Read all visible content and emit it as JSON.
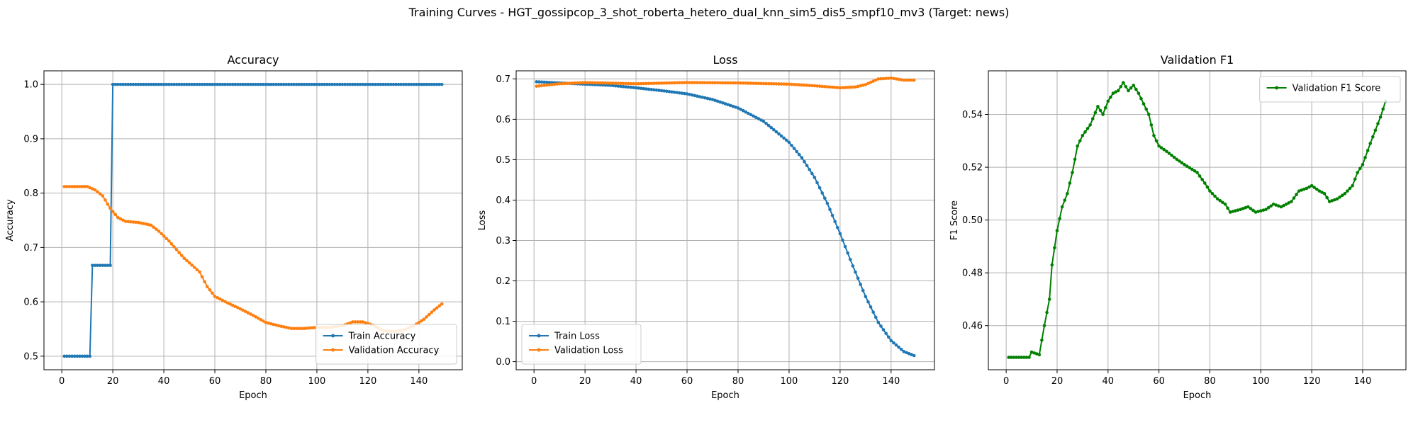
{
  "figure": {
    "suptitle": "Training Curves - HGT_gossipcop_3_shot_roberta_hetero_dual_knn_sim5_dis5_smpf10_mv3 (Target: news)"
  },
  "colors": {
    "train": "#1f77b4",
    "validation": "#ff7f0e",
    "f1": "#008000",
    "grid": "#b0b0b0"
  },
  "chart_data": [
    {
      "type": "line",
      "title": "Accuracy",
      "xlabel": "Epoch",
      "ylabel": "Accuracy",
      "xlim": [
        -7,
        157
      ],
      "ylim": [
        0.475,
        1.025
      ],
      "xticks": [
        0,
        20,
        40,
        60,
        80,
        100,
        120,
        140
      ],
      "yticks": [
        0.5,
        0.6,
        0.7,
        0.8,
        0.9,
        1.0
      ],
      "ytick_decimals": 1,
      "grid": true,
      "legend": "lower-right",
      "series": [
        {
          "name": "Train Accuracy",
          "color_key": "train",
          "x_start": 1,
          "keypoints": [
            [
              1,
              0.5
            ],
            [
              11,
              0.5
            ],
            [
              12,
              0.667
            ],
            [
              19,
              0.667
            ],
            [
              20,
              1.0
            ],
            [
              149,
              1.0
            ]
          ],
          "interp": "step"
        },
        {
          "name": "Validation Accuracy",
          "color_key": "validation",
          "x_start": 1,
          "keypoints": [
            [
              1,
              0.812
            ],
            [
              10,
              0.812
            ],
            [
              13,
              0.806
            ],
            [
              16,
              0.795
            ],
            [
              19,
              0.772
            ],
            [
              22,
              0.755
            ],
            [
              25,
              0.748
            ],
            [
              30,
              0.746
            ],
            [
              35,
              0.741
            ],
            [
              38,
              0.73
            ],
            [
              42,
              0.712
            ],
            [
              48,
              0.68
            ],
            [
              54,
              0.655
            ],
            [
              57,
              0.628
            ],
            [
              60,
              0.61
            ],
            [
              65,
              0.598
            ],
            [
              70,
              0.587
            ],
            [
              75,
              0.575
            ],
            [
              80,
              0.562
            ],
            [
              85,
              0.556
            ],
            [
              90,
              0.551
            ],
            [
              95,
              0.551
            ],
            [
              100,
              0.553
            ],
            [
              105,
              0.553
            ],
            [
              110,
              0.556
            ],
            [
              114,
              0.563
            ],
            [
              118,
              0.563
            ],
            [
              122,
              0.557
            ],
            [
              126,
              0.547
            ],
            [
              130,
              0.545
            ],
            [
              134,
              0.548
            ],
            [
              138,
              0.556
            ],
            [
              142,
              0.568
            ],
            [
              146,
              0.585
            ],
            [
              149,
              0.596
            ]
          ],
          "interp": "linear"
        }
      ]
    },
    {
      "type": "line",
      "title": "Loss",
      "xlabel": "Epoch",
      "ylabel": "Loss",
      "xlim": [
        -7,
        157
      ],
      "ylim": [
        -0.02,
        0.72
      ],
      "xticks": [
        0,
        20,
        40,
        60,
        80,
        100,
        120,
        140
      ],
      "yticks": [
        0.0,
        0.1,
        0.2,
        0.3,
        0.4,
        0.5,
        0.6,
        0.7
      ],
      "ytick_decimals": 1,
      "grid": true,
      "legend": "lower-left",
      "series": [
        {
          "name": "Train Loss",
          "color_key": "train",
          "x_start": 1,
          "keypoints": [
            [
              1,
              0.693
            ],
            [
              10,
              0.69
            ],
            [
              20,
              0.687
            ],
            [
              30,
              0.684
            ],
            [
              40,
              0.678
            ],
            [
              50,
              0.671
            ],
            [
              60,
              0.663
            ],
            [
              70,
              0.649
            ],
            [
              80,
              0.628
            ],
            [
              90,
              0.595
            ],
            [
              100,
              0.543
            ],
            [
              105,
              0.505
            ],
            [
              110,
              0.456
            ],
            [
              115,
              0.392
            ],
            [
              120,
              0.317
            ],
            [
              125,
              0.237
            ],
            [
              130,
              0.161
            ],
            [
              135,
              0.097
            ],
            [
              140,
              0.052
            ],
            [
              145,
              0.025
            ],
            [
              149,
              0.015
            ]
          ],
          "interp": "linear"
        },
        {
          "name": "Validation Loss",
          "color_key": "validation",
          "x_start": 1,
          "keypoints": [
            [
              1,
              0.682
            ],
            [
              10,
              0.688
            ],
            [
              20,
              0.691
            ],
            [
              40,
              0.688
            ],
            [
              60,
              0.691
            ],
            [
              80,
              0.69
            ],
            [
              100,
              0.687
            ],
            [
              110,
              0.683
            ],
            [
              120,
              0.678
            ],
            [
              126,
              0.68
            ],
            [
              130,
              0.686
            ],
            [
              135,
              0.7
            ],
            [
              140,
              0.702
            ],
            [
              145,
              0.697
            ],
            [
              149,
              0.697
            ]
          ],
          "interp": "linear"
        }
      ]
    },
    {
      "type": "line",
      "title": "Validation F1",
      "xlabel": "Epoch",
      "ylabel": "F1 Score",
      "xlim": [
        -7,
        157
      ],
      "ylim": [
        0.4433,
        0.5565
      ],
      "xticks": [
        0,
        20,
        40,
        60,
        80,
        100,
        120,
        140
      ],
      "yticks": [
        0.46,
        0.48,
        0.5,
        0.52,
        0.54
      ],
      "ytick_decimals": 2,
      "grid": true,
      "legend": "top-right",
      "series": [
        {
          "name": "Validation F1 Score",
          "color_key": "f1",
          "x_start": 1,
          "keypoints": [
            [
              1,
              0.448
            ],
            [
              9,
              0.448
            ],
            [
              10,
              0.45
            ],
            [
              13,
              0.449
            ],
            [
              15,
              0.46
            ],
            [
              17,
              0.47
            ],
            [
              18,
              0.483
            ],
            [
              20,
              0.496
            ],
            [
              22,
              0.505
            ],
            [
              24,
              0.51
            ],
            [
              26,
              0.518
            ],
            [
              28,
              0.528
            ],
            [
              30,
              0.532
            ],
            [
              33,
              0.536
            ],
            [
              36,
              0.543
            ],
            [
              38,
              0.54
            ],
            [
              40,
              0.545
            ],
            [
              42,
              0.548
            ],
            [
              44,
              0.549
            ],
            [
              46,
              0.552
            ],
            [
              48,
              0.549
            ],
            [
              50,
              0.551
            ],
            [
              52,
              0.548
            ],
            [
              54,
              0.544
            ],
            [
              56,
              0.54
            ],
            [
              58,
              0.532
            ],
            [
              60,
              0.528
            ],
            [
              63,
              0.526
            ],
            [
              67,
              0.523
            ],
            [
              70,
              0.521
            ],
            [
              75,
              0.518
            ],
            [
              78,
              0.514
            ],
            [
              80,
              0.511
            ],
            [
              83,
              0.508
            ],
            [
              86,
              0.506
            ],
            [
              88,
              0.503
            ],
            [
              92,
              0.504
            ],
            [
              95,
              0.505
            ],
            [
              98,
              0.503
            ],
            [
              102,
              0.504
            ],
            [
              105,
              0.506
            ],
            [
              108,
              0.505
            ],
            [
              112,
              0.507
            ],
            [
              115,
              0.511
            ],
            [
              118,
              0.512
            ],
            [
              120,
              0.513
            ],
            [
              123,
              0.511
            ],
            [
              125,
              0.51
            ],
            [
              127,
              0.507
            ],
            [
              130,
              0.508
            ],
            [
              133,
              0.51
            ],
            [
              136,
              0.513
            ],
            [
              138,
              0.518
            ],
            [
              140,
              0.521
            ],
            [
              143,
              0.529
            ],
            [
              145,
              0.534
            ],
            [
              147,
              0.539
            ],
            [
              149,
              0.545
            ]
          ],
          "interp": "linear"
        }
      ]
    }
  ]
}
